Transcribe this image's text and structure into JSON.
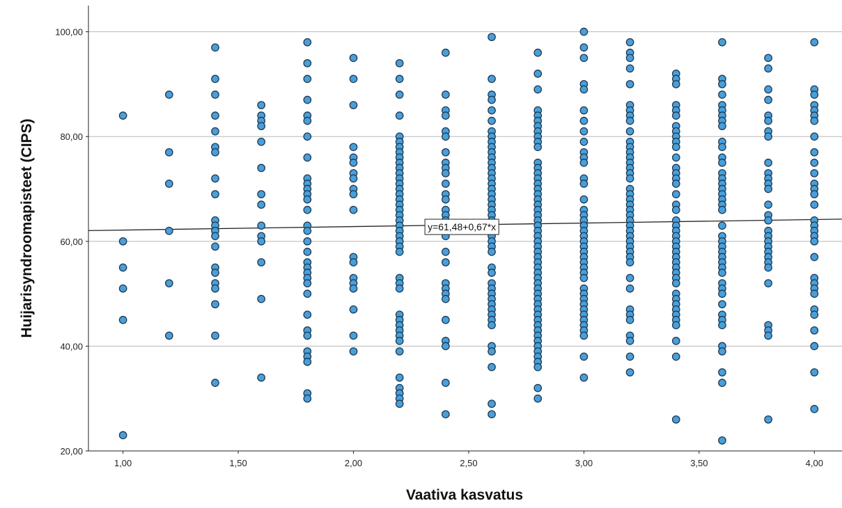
{
  "chart_data": {
    "type": "scatter",
    "title": "",
    "xlabel": "Vaativa kasvatus",
    "ylabel": "Huijarisyndroomapisteet (CIPS)",
    "xlim": [
      0.85,
      4.12
    ],
    "ylim": [
      20,
      105
    ],
    "x_ticks": [
      "1,00",
      "1,50",
      "2,00",
      "2,50",
      "3,00",
      "3,50",
      "4,00"
    ],
    "y_ticks": [
      "20,00",
      "40,00",
      "60,00",
      "80,00",
      "100,00"
    ],
    "grid": "horizontal",
    "marker_color": "#4a9fd8",
    "marker_edge": "#1d3a55",
    "fit_line": {
      "intercept": 61.48,
      "slope": 0.67,
      "label": "y=61,48+0,67*x"
    },
    "points": [
      {
        "x": 1.0,
        "y": [
          84,
          60,
          55,
          51,
          45,
          23
        ]
      },
      {
        "x": 1.2,
        "y": [
          88,
          77,
          71,
          62,
          52,
          42
        ]
      },
      {
        "x": 1.4,
        "y": [
          97,
          91,
          88,
          84,
          81,
          78,
          77,
          72,
          69,
          64,
          63,
          62,
          61,
          59,
          55,
          54,
          52,
          51,
          48,
          42,
          33
        ]
      },
      {
        "x": 1.6,
        "y": [
          86,
          84,
          83,
          82,
          79,
          74,
          69,
          67,
          63,
          61,
          60,
          56,
          49,
          34
        ]
      },
      {
        "x": 1.8,
        "y": [
          98,
          94,
          91,
          87,
          84,
          83,
          80,
          76,
          72,
          71,
          70,
          69,
          68,
          66,
          63,
          62,
          60,
          58,
          56,
          55,
          54,
          53,
          52,
          50,
          46,
          43,
          42,
          39,
          38,
          37,
          31,
          30
        ]
      },
      {
        "x": 2.0,
        "y": [
          95,
          91,
          86,
          78,
          76,
          75,
          73,
          72,
          70,
          69,
          66,
          57,
          56,
          53,
          52,
          51,
          47,
          42,
          39
        ]
      },
      {
        "x": 2.2,
        "y": [
          94,
          91,
          88,
          84,
          80,
          79,
          78,
          77,
          76,
          75,
          74,
          73,
          72,
          71,
          70,
          69,
          68,
          67,
          66,
          65,
          64,
          63,
          62,
          61,
          60,
          59,
          58,
          53,
          52,
          51,
          46,
          45,
          44,
          43,
          42,
          41,
          39,
          34,
          32,
          31,
          30,
          29
        ]
      },
      {
        "x": 2.4,
        "y": [
          96,
          88,
          85,
          84,
          81,
          80,
          77,
          75,
          74,
          73,
          71,
          69,
          68,
          66,
          65,
          64,
          61,
          58,
          56,
          52,
          51,
          50,
          49,
          45,
          41,
          40,
          33,
          27
        ]
      },
      {
        "x": 2.6,
        "y": [
          99,
          91,
          88,
          87,
          85,
          83,
          81,
          80,
          79,
          78,
          77,
          76,
          75,
          74,
          73,
          72,
          71,
          70,
          69,
          68,
          67,
          66,
          65,
          64,
          63,
          62,
          61,
          60,
          59,
          58,
          55,
          54,
          52,
          51,
          50,
          49,
          48,
          47,
          46,
          45,
          44,
          40,
          39,
          36,
          29,
          27
        ]
      },
      {
        "x": 2.8,
        "y": [
          96,
          92,
          89,
          85,
          84,
          83,
          82,
          81,
          80,
          79,
          78,
          75,
          74,
          73,
          72,
          71,
          70,
          69,
          68,
          67,
          66,
          65,
          64,
          63,
          62,
          61,
          60,
          59,
          58,
          57,
          56,
          55,
          54,
          53,
          52,
          51,
          50,
          49,
          48,
          47,
          46,
          45,
          44,
          43,
          42,
          41,
          40,
          39,
          38,
          37,
          36,
          32,
          30
        ]
      },
      {
        "x": 3.0,
        "y": [
          100,
          97,
          95,
          90,
          89,
          85,
          83,
          81,
          79,
          77,
          76,
          75,
          72,
          71,
          68,
          66,
          65,
          64,
          63,
          62,
          61,
          60,
          59,
          58,
          57,
          56,
          55,
          54,
          53,
          51,
          50,
          49,
          48,
          47,
          46,
          45,
          44,
          43,
          42,
          38,
          34
        ]
      },
      {
        "x": 3.2,
        "y": [
          98,
          96,
          95,
          93,
          90,
          86,
          85,
          84,
          83,
          81,
          79,
          78,
          77,
          76,
          75,
          74,
          73,
          72,
          70,
          69,
          68,
          67,
          66,
          65,
          64,
          63,
          62,
          61,
          60,
          59,
          58,
          57,
          56,
          53,
          51,
          47,
          46,
          45,
          42,
          41,
          38,
          35
        ]
      },
      {
        "x": 3.4,
        "y": [
          92,
          91,
          90,
          86,
          85,
          84,
          82,
          81,
          80,
          79,
          78,
          76,
          74,
          73,
          72,
          71,
          69,
          67,
          66,
          64,
          63,
          62,
          61,
          60,
          59,
          58,
          57,
          56,
          55,
          54,
          53,
          52,
          50,
          49,
          48,
          47,
          46,
          45,
          44,
          41,
          38,
          26
        ]
      },
      {
        "x": 3.6,
        "y": [
          98,
          91,
          90,
          88,
          86,
          85,
          84,
          83,
          82,
          79,
          78,
          76,
          75,
          73,
          72,
          71,
          70,
          69,
          68,
          67,
          66,
          63,
          61,
          60,
          59,
          58,
          57,
          56,
          55,
          54,
          52,
          51,
          50,
          48,
          46,
          45,
          44,
          40,
          39,
          35,
          33,
          22
        ]
      },
      {
        "x": 3.8,
        "y": [
          95,
          93,
          89,
          87,
          84,
          83,
          81,
          80,
          75,
          73,
          72,
          71,
          70,
          67,
          65,
          64,
          62,
          61,
          60,
          59,
          58,
          57,
          56,
          55,
          52,
          44,
          43,
          42,
          26
        ]
      },
      {
        "x": 4.0,
        "y": [
          98,
          89,
          88,
          86,
          85,
          84,
          83,
          80,
          77,
          75,
          73,
          71,
          70,
          69,
          67,
          64,
          63,
          62,
          61,
          60,
          57,
          53,
          52,
          51,
          50,
          47,
          46,
          43,
          40,
          35,
          28
        ]
      }
    ]
  }
}
